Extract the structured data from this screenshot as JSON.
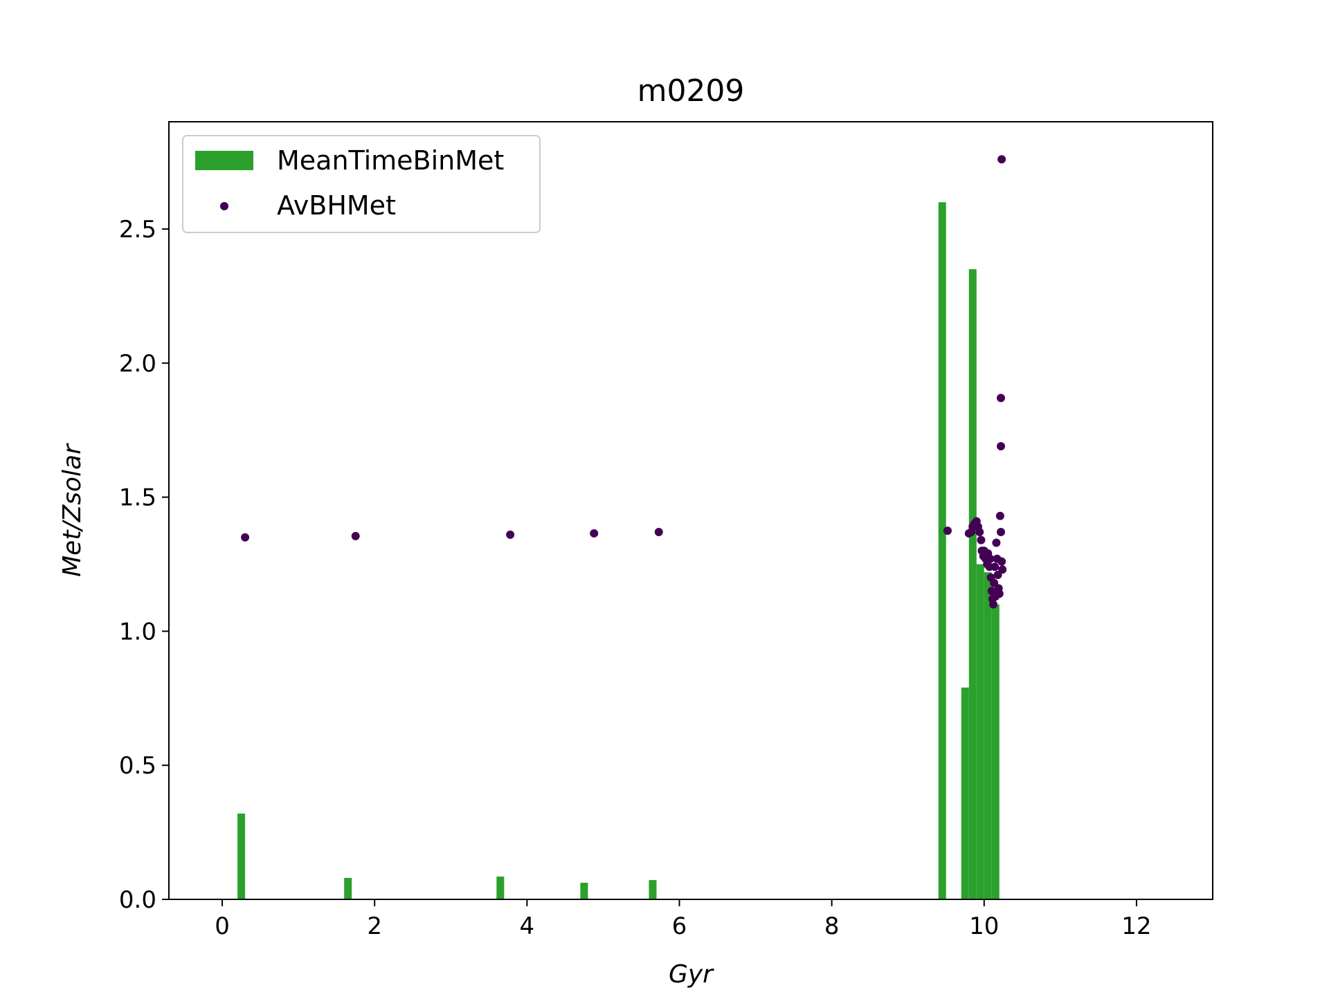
{
  "chart_data": {
    "type": "bar",
    "title": "m0209",
    "xlabel": "Gyr",
    "ylabel": "Met/Zsolar",
    "xlim": [
      -0.7,
      13.0
    ],
    "ylim": [
      0.0,
      2.9
    ],
    "xticks": [
      0,
      2,
      4,
      6,
      8,
      10,
      12
    ],
    "xtick_labels": [
      "0",
      "2",
      "4",
      "6",
      "8",
      "10",
      "12"
    ],
    "yticks": [
      0.0,
      0.5,
      1.0,
      1.5,
      2.0,
      2.5
    ],
    "ytick_labels": [
      "0.0",
      "0.5",
      "1.0",
      "1.5",
      "2.0",
      "2.5"
    ],
    "grid": false,
    "legend_position": "upper-left",
    "colors": {
      "bars": "#2ca02c",
      "points": "#440154",
      "axes": "#000000",
      "legend_border": "#cccccc"
    },
    "series": [
      {
        "name": "MeanTimeBinMet",
        "kind": "bar",
        "bar_width": 0.1,
        "x": [
          0.25,
          1.65,
          3.65,
          4.75,
          5.65,
          9.45,
          9.75,
          9.85,
          9.95,
          10.05,
          10.15
        ],
        "values": [
          0.32,
          0.08,
          0.085,
          0.062,
          0.072,
          2.6,
          0.79,
          2.35,
          1.25,
          1.22,
          1.1
        ]
      },
      {
        "name": "AvBHMet",
        "kind": "scatter",
        "x": [
          0.3,
          1.75,
          3.78,
          4.88,
          5.73,
          9.52,
          9.8,
          9.83,
          9.85,
          9.87,
          9.9,
          9.92,
          9.94,
          9.96,
          9.97,
          9.99,
          10.0,
          10.02,
          10.04,
          10.05,
          10.07,
          10.08,
          10.09,
          10.1,
          10.11,
          10.12,
          10.13,
          10.14,
          10.15,
          10.16,
          10.17,
          10.18,
          10.19,
          10.2,
          10.21,
          10.22,
          10.22,
          10.22,
          10.23,
          10.23,
          10.24
        ],
        "y": [
          1.35,
          1.355,
          1.36,
          1.365,
          1.37,
          1.375,
          1.365,
          1.37,
          1.39,
          1.4,
          1.41,
          1.39,
          1.37,
          1.34,
          1.3,
          1.28,
          1.3,
          1.27,
          1.25,
          1.29,
          1.24,
          1.27,
          1.2,
          1.15,
          1.12,
          1.1,
          1.18,
          1.24,
          1.13,
          1.33,
          1.27,
          1.21,
          1.16,
          1.14,
          1.43,
          1.37,
          1.69,
          1.87,
          2.76,
          1.26,
          1.23
        ]
      }
    ]
  }
}
